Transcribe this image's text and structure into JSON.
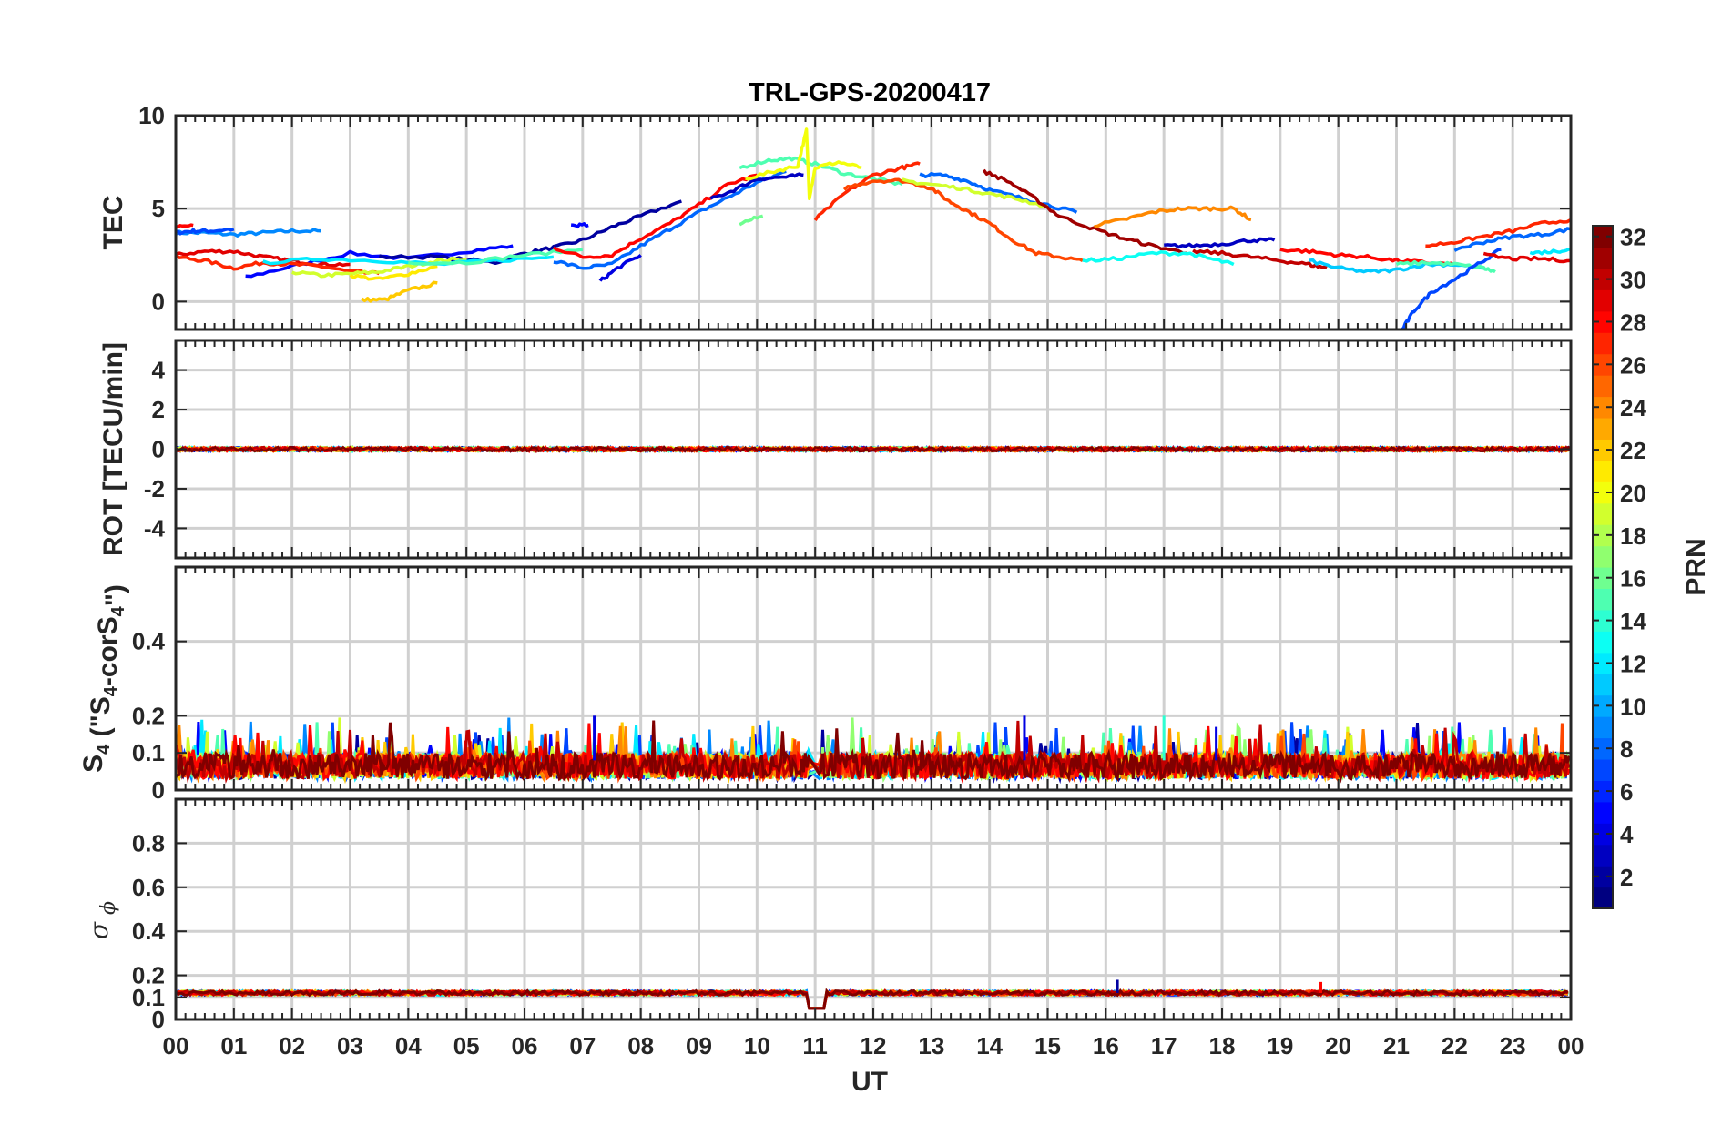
{
  "chart_data": {
    "type": "line",
    "title": "TRL-GPS-20200417",
    "xlabel": "UT",
    "x_tick_labels": [
      "00",
      "01",
      "02",
      "03",
      "04",
      "05",
      "06",
      "07",
      "08",
      "09",
      "10",
      "11",
      "12",
      "13",
      "14",
      "15",
      "16",
      "17",
      "18",
      "19",
      "20",
      "21",
      "22",
      "23",
      "00"
    ],
    "xlim": [
      0,
      24
    ],
    "grid": true,
    "colorbar": {
      "label": "PRN",
      "range": [
        1,
        32
      ],
      "tick_labels": [
        "2",
        "4",
        "6",
        "8",
        "10",
        "12",
        "14",
        "16",
        "18",
        "20",
        "22",
        "24",
        "26",
        "28",
        "30",
        "32"
      ],
      "tick_values": [
        2,
        4,
        6,
        8,
        10,
        12,
        14,
        16,
        18,
        20,
        22,
        24,
        26,
        28,
        30,
        32
      ],
      "colormap": "jet",
      "colors": [
        "#00008f",
        "#0000ff",
        "#0080ff",
        "#00ffff",
        "#80ff80",
        "#ffff00",
        "#ff8000",
        "#ff0000",
        "#800000"
      ]
    },
    "panels": [
      {
        "id": "tec",
        "ylabel": "TEC",
        "ylim": [
          -1.5,
          10
        ],
        "y_ticks": [
          0,
          5,
          10
        ],
        "y_tick_labels": [
          "0",
          "5",
          "10"
        ],
        "series": [
          {
            "prn": 9,
            "x": [
              0.0,
              0.5,
              1.0,
              1.5,
              2.0,
              2.5
            ],
            "y": [
              3.7,
              3.7,
              3.6,
              3.7,
              3.8,
              3.8
            ]
          },
          {
            "prn": 7,
            "x": [
              0.0,
              0.3,
              0.6,
              1.0
            ],
            "y": [
              3.7,
              3.8,
              3.8,
              3.9
            ]
          },
          {
            "prn": 28,
            "x": [
              0.0,
              0.3
            ],
            "y": [
              4.0,
              4.1
            ]
          },
          {
            "prn": 5,
            "x": [
              1.2,
              2.0,
              3.0,
              4.0,
              5.0,
              5.8
            ],
            "y": [
              1.3,
              1.9,
              2.6,
              2.3,
              2.7,
              3.0
            ]
          },
          {
            "prn": 2,
            "x": [
              3.5,
              4.5,
              5.5,
              6.0,
              6.5,
              7.0,
              7.5,
              8.0,
              8.7
            ],
            "y": [
              2.4,
              2.4,
              2.1,
              2.6,
              2.9,
              3.3,
              4.0,
              4.6,
              5.4
            ]
          },
          {
            "prn": 29,
            "x": [
              0.0,
              0.5,
              1.0,
              1.5,
              2.0,
              2.5,
              3.0
            ],
            "y": [
              2.5,
              2.7,
              2.7,
              2.4,
              2.2,
              2.0,
              2.0
            ]
          },
          {
            "prn": 27,
            "x": [
              0.0,
              0.5,
              1.0,
              1.5,
              2.0,
              2.5,
              3.0,
              3.5
            ],
            "y": [
              2.4,
              2.2,
              1.8,
              2.1,
              2.0,
              1.9,
              1.6,
              1.5
            ]
          },
          {
            "prn": 19,
            "x": [
              2.0,
              2.5,
              3.0,
              3.5,
              4.0,
              4.5,
              5.0
            ],
            "y": [
              1.6,
              1.4,
              1.5,
              1.6,
              1.9,
              2.2,
              2.3
            ]
          },
          {
            "prn": 21,
            "x": [
              3.0,
              3.5,
              4.0,
              4.5
            ],
            "y": [
              1.4,
              1.2,
              1.5,
              1.9
            ]
          },
          {
            "prn": 22,
            "x": [
              3.2,
              3.6,
              4.0,
              4.5
            ],
            "y": [
              0.1,
              0.1,
              0.6,
              1.0
            ]
          },
          {
            "prn": 12,
            "x": [
              1.5,
              2.5,
              3.5,
              4.5,
              5.5,
              6.5
            ],
            "y": [
              2.1,
              2.3,
              2.2,
              2.0,
              2.2,
              2.4
            ]
          },
          {
            "prn": 15,
            "x": [
              4.0,
              5.0,
              6.0,
              7.0
            ],
            "y": [
              2.1,
              2.1,
              2.5,
              2.8
            ]
          },
          {
            "prn": 8,
            "x": [
              6.5,
              7.0,
              7.5,
              8.0,
              8.5,
              9.0,
              9.5,
              10.0,
              10.5
            ],
            "y": [
              2.2,
              1.8,
              2.0,
              3.0,
              3.9,
              4.8,
              5.6,
              6.4,
              7.0
            ]
          },
          {
            "prn": 28,
            "x": [
              6.5,
              7.0,
              7.5,
              8.0,
              8.5,
              9.0,
              9.5,
              10.0
            ],
            "y": [
              2.9,
              2.4,
              2.5,
              3.4,
              4.2,
              5.2,
              6.3,
              6.8
            ]
          },
          {
            "prn": 4,
            "x": [
              7.3,
              7.6,
              8.0
            ],
            "y": [
              1.1,
              1.8,
              2.5
            ]
          },
          {
            "prn": 5,
            "x": [
              6.8,
              7.1
            ],
            "y": [
              4.1,
              4.1
            ]
          },
          {
            "prn": 3,
            "x": [
              9.2,
              9.6,
              10.0,
              10.5,
              10.8
            ],
            "y": [
              5.5,
              6.0,
              6.6,
              6.7,
              6.8
            ]
          },
          {
            "prn": 15,
            "x": [
              9.7,
              10.2,
              10.6,
              11.0,
              11.5,
              12.0,
              12.5
            ],
            "y": [
              7.2,
              7.6,
              7.7,
              7.4,
              6.9,
              6.6,
              6.3
            ]
          },
          {
            "prn": 16,
            "x": [
              9.7,
              10.1
            ],
            "y": [
              4.2,
              4.6
            ]
          },
          {
            "prn": 20,
            "x": [
              9.8,
              10.3,
              10.7,
              10.85,
              10.9,
              11.0,
              11.4,
              11.8
            ],
            "y": [
              6.6,
              7.0,
              7.3,
              9.2,
              5.6,
              7.2,
              7.5,
              7.2
            ]
          },
          {
            "prn": 27,
            "x": [
              11.0,
              11.5,
              12.0,
              12.5,
              12.8
            ],
            "y": [
              4.4,
              5.8,
              6.8,
              7.2,
              7.4
            ]
          },
          {
            "prn": 26,
            "x": [
              11.5,
              12.0,
              12.5,
              13.0,
              13.3,
              13.6,
              14.0,
              14.4,
              14.8,
              15.2,
              15.6
            ],
            "y": [
              6.1,
              6.5,
              6.5,
              6.1,
              5.4,
              4.9,
              4.2,
              3.3,
              2.6,
              2.4,
              2.2
            ]
          },
          {
            "prn": 8,
            "x": [
              12.8,
              13.2,
              13.6,
              14.0,
              14.5,
              15.0,
              15.5
            ],
            "y": [
              6.8,
              6.8,
              6.5,
              6.0,
              5.6,
              5.2,
              4.8
            ]
          },
          {
            "prn": 19,
            "x": [
              12.5,
              13.0,
              13.5,
              14.0,
              14.5,
              15.0
            ],
            "y": [
              6.5,
              6.3,
              6.1,
              5.8,
              5.5,
              5.1
            ]
          },
          {
            "prn": 31,
            "x": [
              13.9,
              14.3,
              14.8,
              15.2,
              15.8,
              16.3,
              16.8,
              17.4
            ],
            "y": [
              7.0,
              6.5,
              5.5,
              4.6,
              3.9,
              3.4,
              3.0,
              2.6
            ]
          },
          {
            "prn": 24,
            "x": [
              15.8,
              16.3,
              16.8,
              17.3,
              17.8,
              18.2,
              18.5
            ],
            "y": [
              4.1,
              4.4,
              4.8,
              5.0,
              5.0,
              5.0,
              4.4
            ]
          },
          {
            "prn": 13,
            "x": [
              15.6,
              16.2,
              16.8,
              17.4,
              17.8,
              18.2
            ],
            "y": [
              2.2,
              2.3,
              2.6,
              2.6,
              2.3,
              2.0
            ]
          },
          {
            "prn": 3,
            "x": [
              17.0,
              17.5,
              18.0,
              18.5,
              18.9
            ],
            "y": [
              3.0,
              3.0,
              3.1,
              3.3,
              3.3
            ]
          },
          {
            "prn": 30,
            "x": [
              17.5,
              18.0,
              18.5,
              19.0,
              19.5,
              19.8
            ],
            "y": [
              2.7,
              2.6,
              2.4,
              2.2,
              2.0,
              1.8
            ]
          },
          {
            "prn": 28,
            "x": [
              19.0,
              19.5,
              20.0,
              20.5,
              21.0,
              21.5,
              22.0
            ],
            "y": [
              2.8,
              2.7,
              2.5,
              2.4,
              2.2,
              2.1,
              2.0
            ]
          },
          {
            "prn": 11,
            "x": [
              19.5,
              20.0,
              20.5,
              21.0,
              21.5,
              22.0,
              22.5
            ],
            "y": [
              2.2,
              1.8,
              1.6,
              1.7,
              2.0,
              2.0,
              1.8
            ]
          },
          {
            "prn": 15,
            "x": [
              21.0,
              21.5,
              22.0,
              22.5,
              22.7
            ],
            "y": [
              2.0,
              2.1,
              2.0,
              1.8,
              1.6
            ]
          },
          {
            "prn": 7,
            "x": [
              21.1,
              21.3,
              21.6,
              22.0,
              22.4,
              22.8
            ],
            "y": [
              -1.5,
              -0.5,
              0.5,
              1.2,
              2.0,
              2.8
            ]
          },
          {
            "prn": 8,
            "x": [
              22.0,
              22.5,
              23.0,
              23.5,
              24.0
            ],
            "y": [
              2.8,
              3.2,
              3.5,
              3.6,
              3.9
            ]
          },
          {
            "prn": 27,
            "x": [
              21.5,
              22.0,
              22.5,
              23.0,
              23.5,
              24.0
            ],
            "y": [
              3.0,
              3.2,
              3.5,
              3.8,
              4.2,
              4.4
            ]
          },
          {
            "prn": 29,
            "x": [
              22.5,
              23.0,
              23.5,
              24.0
            ],
            "y": [
              2.5,
              2.3,
              2.3,
              2.2
            ]
          },
          {
            "prn": 12,
            "x": [
              23.3,
              23.7,
              24.0
            ],
            "y": [
              2.6,
              2.7,
              2.8
            ]
          }
        ]
      },
      {
        "id": "rot",
        "ylabel": "ROT [TECU/min]",
        "ylim": [
          -5.5,
          5.5
        ],
        "y_ticks": [
          -4,
          -2,
          0,
          2,
          4
        ],
        "y_tick_labels": [
          "-4",
          "-2",
          "0",
          "2",
          "4"
        ],
        "description_value": "all satellites near 0 (about ±0.15 TECU/min) for 00–24 UT"
      },
      {
        "id": "s4",
        "ylabel_main": "S",
        "ylabel_sub": "4",
        "ylabel_rest_1": " (\"S",
        "ylabel_sub_2": "4",
        "ylabel_rest_2": "-corS",
        "ylabel_sub_3": "4",
        "ylabel_rest_3": "\")",
        "ylim": [
          0,
          0.6
        ],
        "y_ticks": [
          0,
          0.1,
          0.2,
          0.4
        ],
        "y_tick_labels": [
          "0",
          "0.1",
          "0.2",
          "0.4"
        ],
        "typical_range": [
          0.02,
          0.15
        ],
        "peak_values": [
          {
            "x": 7.2,
            "y": 0.2
          },
          {
            "x": 14.6,
            "y": 0.2
          },
          {
            "x": 17.0,
            "y": 0.2
          },
          {
            "x": 17.9,
            "y": 0.17
          }
        ]
      },
      {
        "id": "sigphi",
        "ylabel": "σ ϕ",
        "ylim": [
          0,
          1.0
        ],
        "y_ticks": [
          0,
          0.1,
          0.2,
          0.4,
          0.6,
          0.8
        ],
        "y_tick_labels": [
          "0",
          "0.1",
          "0.2",
          "0.4",
          "0.6",
          "0.8"
        ],
        "typical_value": 0.12,
        "dip": {
          "x": [
            10.9,
            11.2
          ],
          "y": 0.05
        },
        "spikes": [
          {
            "x": 16.2,
            "y": 0.18
          },
          {
            "x": 19.7,
            "y": 0.17
          }
        ]
      }
    ]
  }
}
